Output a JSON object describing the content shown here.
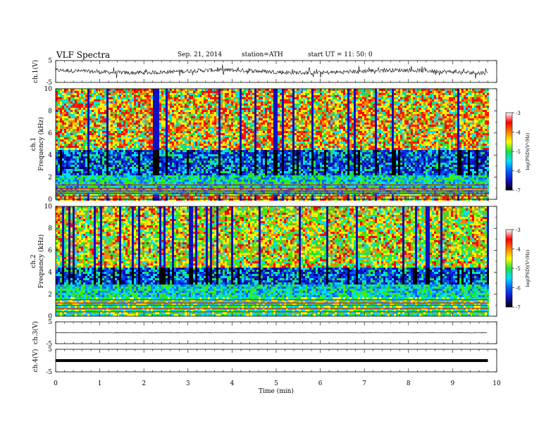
{
  "header": {
    "title": "VLF  Spectra",
    "date": "Sep. 21, 2014",
    "station": "station=ATH",
    "start": "start  UT  =   11: 50: 0"
  },
  "chart_data": [
    {
      "type": "line",
      "name": "ch1-waveform",
      "ylabel": "ch.1(V)",
      "ylim": [
        -5,
        5
      ],
      "yticks": [
        "5",
        "-5"
      ],
      "xlim": [
        0,
        10
      ],
      "baseline": 0,
      "color": "#000000"
    },
    {
      "type": "heatmap",
      "name": "ch1-spectrogram",
      "ylabel_top": "ch.1",
      "ylabel": "Frequency  (kHz)",
      "ylim": [
        0,
        10
      ],
      "yticks": [
        "0",
        "2",
        "4",
        "6",
        "8",
        "10"
      ],
      "xlim": [
        0,
        10
      ],
      "data_end_min": 9.8,
      "bands": [
        {
          "from": 0,
          "to": 0.5,
          "level": "high"
        },
        {
          "from": 0.5,
          "to": 2.3,
          "level": "low-mid"
        },
        {
          "from": 2.3,
          "to": 4.5,
          "level": "low"
        },
        {
          "from": 4.5,
          "to": 10,
          "level": "high"
        }
      ]
    },
    {
      "type": "heatmap",
      "name": "ch2-spectrogram",
      "ylabel_top": "ch.2",
      "ylabel": "Frequency  (kHz)",
      "ylim": [
        0,
        10
      ],
      "yticks": [
        "0",
        "2",
        "4",
        "6",
        "8",
        "10"
      ],
      "xlim": [
        0,
        10
      ],
      "data_end_min": 9.8,
      "bands": [
        {
          "from": 0,
          "to": 1.8,
          "level": "mid"
        },
        {
          "from": 1.8,
          "to": 3.0,
          "level": "low-mid"
        },
        {
          "from": 3.0,
          "to": 4.6,
          "level": "low"
        },
        {
          "from": 4.6,
          "to": 10,
          "level": "mid-high"
        }
      ]
    },
    {
      "type": "line",
      "name": "ch3-waveform",
      "ylabel": "ch.3(V)",
      "ylim": [
        -5,
        5
      ],
      "yticks": [
        "5",
        "-5"
      ],
      "xlim": [
        0,
        10
      ],
      "baseline": 0,
      "color": "#000000"
    },
    {
      "type": "line",
      "name": "ch4-waveform",
      "ylabel": "ch.4(V)",
      "ylim": [
        -5,
        5
      ],
      "yticks": [
        "5",
        "-5"
      ],
      "xlim": [
        0,
        10
      ],
      "baseline": 0,
      "color": "#000000"
    }
  ],
  "x_axis": {
    "label": "Time  (min)",
    "ticks": [
      "0",
      "1",
      "2",
      "3",
      "4",
      "5",
      "6",
      "7",
      "8",
      "9",
      "10"
    ]
  },
  "colorbar": {
    "label": "log(PSD)(V²/Hz)",
    "ticks": [
      "-3",
      "-4",
      "-5",
      "-6",
      "-7"
    ],
    "range": [
      -7,
      -3
    ],
    "colors": [
      "#000000",
      "#1010c0",
      "#0060ff",
      "#00e0ff",
      "#20e040",
      "#ffff00",
      "#ff8000",
      "#ff0000",
      "#ffffff"
    ]
  }
}
